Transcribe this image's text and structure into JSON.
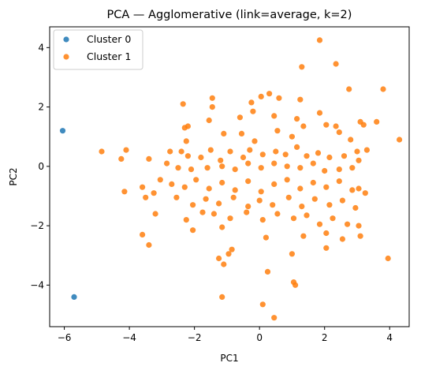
{
  "chart_data": {
    "type": "scatter",
    "title": "PCA — Agglomerative (link=average, k=2)",
    "xlabel": "PC1",
    "ylabel": "PC2",
    "xlim": [
      -6.45,
      4.6
    ],
    "ylim": [
      -5.4,
      4.7
    ],
    "xticks": [
      -6,
      -4,
      -2,
      0,
      2,
      4
    ],
    "yticks": [
      -4,
      -2,
      0,
      2,
      4
    ],
    "xtick_labels": [
      "−6",
      "−4",
      "−2",
      "0",
      "2",
      "4"
    ],
    "ytick_labels": [
      "−4",
      "−2",
      "0",
      "2",
      "4"
    ],
    "grid": false,
    "legend": {
      "position": "top-left",
      "entries": [
        "Cluster 0",
        "Cluster 1"
      ]
    },
    "series": [
      {
        "name": "Cluster 0",
        "color": "#1f77b4",
        "points": [
          [
            -6.05,
            1.2
          ],
          [
            -5.7,
            -4.4
          ]
        ]
      },
      {
        "name": "Cluster 1",
        "color": "#ff7f0e",
        "points": [
          [
            1.85,
            4.25
          ],
          [
            2.35,
            3.45
          ],
          [
            1.3,
            3.35
          ],
          [
            2.75,
            2.6
          ],
          [
            3.8,
            2.6
          ],
          [
            -2.35,
            2.1
          ],
          [
            -1.45,
            2.3
          ],
          [
            -1.45,
            2.0
          ],
          [
            0.05,
            2.35
          ],
          [
            0.3,
            2.45
          ],
          [
            0.6,
            2.3
          ],
          [
            -0.25,
            2.15
          ],
          [
            1.25,
            2.25
          ],
          [
            -0.2,
            1.85
          ],
          [
            -2.3,
            1.3
          ],
          [
            -1.55,
            1.55
          ],
          [
            -0.6,
            1.65
          ],
          [
            0.45,
            1.7
          ],
          [
            1.15,
            1.6
          ],
          [
            1.85,
            1.8
          ],
          [
            2.05,
            1.4
          ],
          [
            3.1,
            1.5
          ],
          [
            3.2,
            1.4
          ],
          [
            3.6,
            1.5
          ],
          [
            2.45,
            1.15
          ],
          [
            -2.2,
            1.35
          ],
          [
            -2.25,
            0.85
          ],
          [
            -1.1,
            1.1
          ],
          [
            -0.55,
            1.1
          ],
          [
            -0.15,
            0.85
          ],
          [
            0.55,
            1.2
          ],
          [
            1.35,
            1.35
          ],
          [
            1.0,
            1.0
          ],
          [
            2.35,
            1.35
          ],
          [
            2.8,
            0.9
          ],
          [
            3.0,
            0.5
          ],
          [
            3.3,
            0.55
          ],
          [
            4.3,
            0.9
          ],
          [
            -4.85,
            0.5
          ],
          [
            -4.1,
            0.55
          ],
          [
            -4.25,
            0.25
          ],
          [
            -3.4,
            0.25
          ],
          [
            -2.75,
            0.5
          ],
          [
            -2.4,
            0.5
          ],
          [
            -2.2,
            0.35
          ],
          [
            -1.8,
            0.3
          ],
          [
            -1.5,
            0.55
          ],
          [
            -1.2,
            0.2
          ],
          [
            -0.9,
            0.5
          ],
          [
            -0.5,
            0.3
          ],
          [
            -0.3,
            0.55
          ],
          [
            0.1,
            0.4
          ],
          [
            0.5,
            0.5
          ],
          [
            0.8,
            0.4
          ],
          [
            1.15,
            0.65
          ],
          [
            1.45,
            0.35
          ],
          [
            1.8,
            0.45
          ],
          [
            2.15,
            0.3
          ],
          [
            2.6,
            0.35
          ],
          [
            3.05,
            0.2
          ],
          [
            -2.85,
            0.1
          ],
          [
            -2.5,
            -0.05
          ],
          [
            -2.1,
            -0.1
          ],
          [
            -1.6,
            -0.05
          ],
          [
            -1.15,
            0.0
          ],
          [
            -0.75,
            -0.1
          ],
          [
            -0.35,
            0.1
          ],
          [
            0.05,
            -0.05
          ],
          [
            0.45,
            0.1
          ],
          [
            0.85,
            0.0
          ],
          [
            1.25,
            -0.05
          ],
          [
            1.65,
            0.1
          ],
          [
            2.0,
            -0.15
          ],
          [
            2.45,
            -0.1
          ],
          [
            2.85,
            -0.05
          ],
          [
            -3.6,
            -0.7
          ],
          [
            -3.25,
            -0.9
          ],
          [
            -3.05,
            -0.45
          ],
          [
            -2.7,
            -0.6
          ],
          [
            -2.3,
            -0.7
          ],
          [
            -1.95,
            -0.45
          ],
          [
            -1.55,
            -0.75
          ],
          [
            -1.15,
            -0.55
          ],
          [
            -0.75,
            -0.8
          ],
          [
            -0.35,
            -0.5
          ],
          [
            0.05,
            -0.85
          ],
          [
            0.45,
            -0.6
          ],
          [
            0.85,
            -0.45
          ],
          [
            1.25,
            -0.75
          ],
          [
            1.65,
            -0.55
          ],
          [
            2.05,
            -0.7
          ],
          [
            2.45,
            -0.5
          ],
          [
            2.85,
            -0.8
          ],
          [
            3.25,
            -0.9
          ],
          [
            3.05,
            -0.75
          ],
          [
            -4.15,
            -0.85
          ],
          [
            -3.5,
            -1.05
          ],
          [
            -3.2,
            -1.6
          ],
          [
            -2.55,
            -1.05
          ],
          [
            -2.05,
            -1.3
          ],
          [
            -1.65,
            -1.1
          ],
          [
            -1.25,
            -1.25
          ],
          [
            -0.8,
            -1.05
          ],
          [
            -0.35,
            -1.35
          ],
          [
            0.0,
            -1.15
          ],
          [
            0.4,
            -1.3
          ],
          [
            0.9,
            -1.05
          ],
          [
            1.3,
            -1.35
          ],
          [
            1.7,
            -1.1
          ],
          [
            2.15,
            -1.3
          ],
          [
            2.55,
            -1.15
          ],
          [
            2.95,
            -1.4
          ],
          [
            -2.25,
            -1.8
          ],
          [
            -1.75,
            -1.55
          ],
          [
            -1.4,
            -1.6
          ],
          [
            -0.9,
            -1.75
          ],
          [
            -0.4,
            -1.55
          ],
          [
            0.1,
            -1.8
          ],
          [
            0.55,
            -1.6
          ],
          [
            1.05,
            -1.75
          ],
          [
            1.45,
            -1.65
          ],
          [
            1.85,
            -1.95
          ],
          [
            2.25,
            -1.75
          ],
          [
            2.7,
            -1.95
          ],
          [
            3.05,
            -2.0
          ],
          [
            -2.05,
            -2.15
          ],
          [
            -1.15,
            -2.05
          ],
          [
            0.2,
            -2.4
          ],
          [
            1.35,
            -2.35
          ],
          [
            2.05,
            -2.25
          ],
          [
            2.55,
            -2.45
          ],
          [
            3.1,
            -2.35
          ],
          [
            -3.6,
            -2.3
          ],
          [
            -3.4,
            -2.65
          ],
          [
            -0.85,
            -2.8
          ],
          [
            -1.25,
            -3.1
          ],
          [
            -0.95,
            -2.95
          ],
          [
            -1.1,
            -3.3
          ],
          [
            1.0,
            -2.95
          ],
          [
            2.05,
            -2.75
          ],
          [
            3.95,
            -3.1
          ],
          [
            0.25,
            -3.55
          ],
          [
            1.05,
            -3.9
          ],
          [
            1.1,
            -4.0
          ],
          [
            -1.15,
            -4.4
          ],
          [
            0.1,
            -4.65
          ],
          [
            0.45,
            -5.1
          ]
        ]
      }
    ]
  }
}
